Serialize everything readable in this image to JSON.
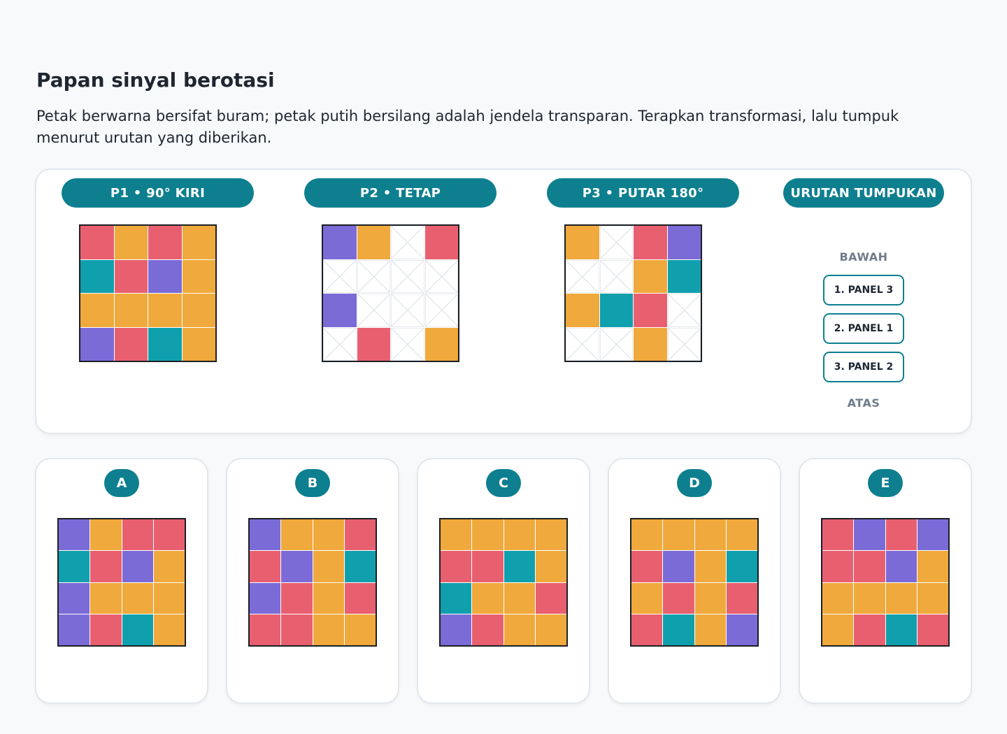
{
  "header": {
    "title": "Papan sinyal berotasi",
    "description": "Petak berwarna bersifat buram; petak putih bersilang adalah jendela transparan. Terapkan transformasi, lalu tumpuk menurut urutan yang diberikan."
  },
  "colors": {
    "R": "#e8606f",
    "O": "#f0a93c",
    "P": "#7b6bd7",
    "T": "#10a0ad",
    "W": "#ffffff"
  },
  "panels": [
    {
      "label": "P1 • 90° KIRI",
      "cells": [
        "R",
        "O",
        "R",
        "O",
        "T",
        "R",
        "P",
        "O",
        "O",
        "O",
        "O",
        "O",
        "P",
        "R",
        "T",
        "O"
      ]
    },
    {
      "label": "P2 • TETAP",
      "cells": [
        "P",
        "O",
        "W",
        "R",
        "W",
        "W",
        "W",
        "W",
        "P",
        "W",
        "W",
        "W",
        "W",
        "R",
        "W",
        "O"
      ]
    },
    {
      "label": "P3 • PUTAR 180°",
      "cells": [
        "O",
        "W",
        "R",
        "P",
        "W",
        "W",
        "O",
        "T",
        "O",
        "T",
        "R",
        "W",
        "W",
        "W",
        "O",
        "W"
      ]
    }
  ],
  "stack": {
    "title": "URUTAN TUMPUKAN",
    "bottom_label": "BAWAH",
    "top_label": "ATAS",
    "items": [
      "1. PANEL 3",
      "2. PANEL 1",
      "3. PANEL 2"
    ]
  },
  "options": [
    {
      "label": "A",
      "cells": [
        "P",
        "O",
        "R",
        "R",
        "T",
        "R",
        "P",
        "O",
        "P",
        "O",
        "O",
        "O",
        "P",
        "R",
        "T",
        "O"
      ]
    },
    {
      "label": "B",
      "cells": [
        "P",
        "O",
        "O",
        "R",
        "R",
        "P",
        "O",
        "T",
        "P",
        "R",
        "O",
        "R",
        "R",
        "R",
        "O",
        "O"
      ]
    },
    {
      "label": "C",
      "cells": [
        "O",
        "O",
        "O",
        "O",
        "R",
        "R",
        "T",
        "O",
        "T",
        "O",
        "O",
        "R",
        "P",
        "R",
        "O",
        "O"
      ]
    },
    {
      "label": "D",
      "cells": [
        "O",
        "O",
        "O",
        "O",
        "R",
        "P",
        "O",
        "T",
        "O",
        "R",
        "O",
        "R",
        "R",
        "T",
        "O",
        "P"
      ]
    },
    {
      "label": "E",
      "cells": [
        "R",
        "P",
        "R",
        "P",
        "R",
        "R",
        "P",
        "O",
        "O",
        "O",
        "O",
        "O",
        "O",
        "R",
        "T",
        "R"
      ]
    }
  ]
}
